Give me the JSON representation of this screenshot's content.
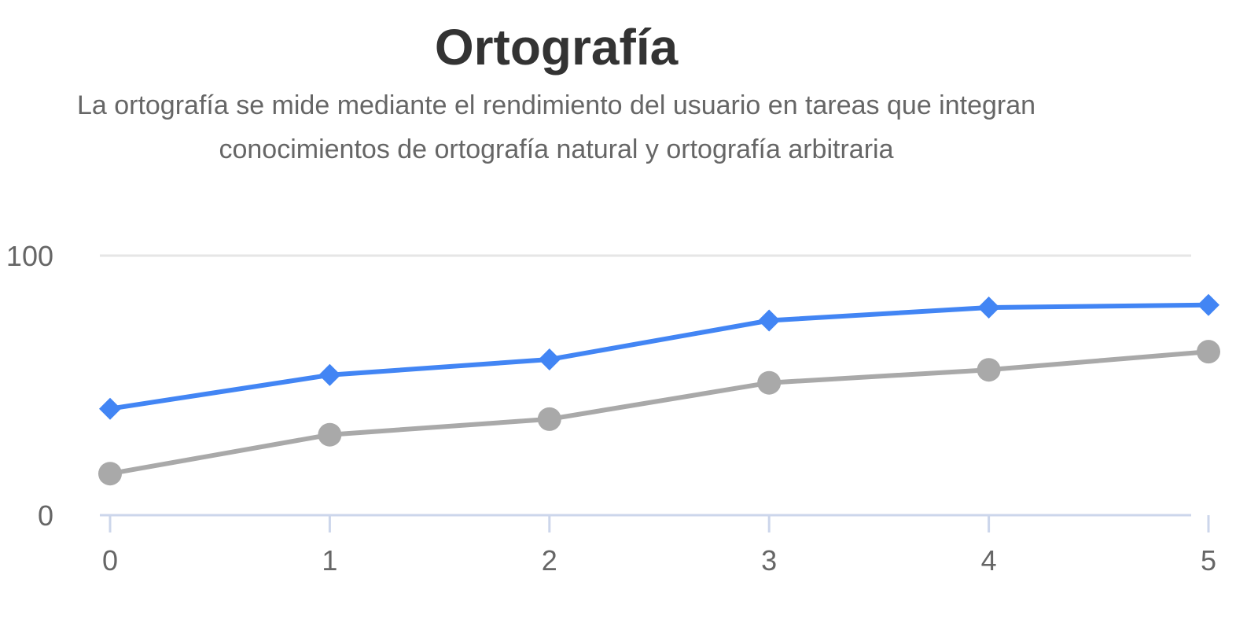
{
  "chart_data": {
    "type": "line",
    "title": "Ortografía",
    "subtitle": "La ortografía se mide mediante el rendimiento del usuario en tareas que integran conocimientos de ortografía natural y ortografía arbitraria",
    "xlabel": "",
    "ylabel": "",
    "x": [
      0,
      1,
      2,
      3,
      4,
      5
    ],
    "x_tick_labels": [
      "0",
      "1",
      "2",
      "3",
      "4",
      "5"
    ],
    "y_tick_labels": [
      "0",
      "100"
    ],
    "ylim": [
      0,
      100
    ],
    "grid": true,
    "legend": "none",
    "series": [
      {
        "color": "#4285f4",
        "marker": "diamond",
        "values": [
          41,
          54,
          60,
          75,
          80,
          81
        ]
      },
      {
        "color": "#a9a9a9",
        "marker": "circle",
        "values": [
          16,
          31,
          37,
          51,
          56,
          63
        ]
      }
    ]
  }
}
